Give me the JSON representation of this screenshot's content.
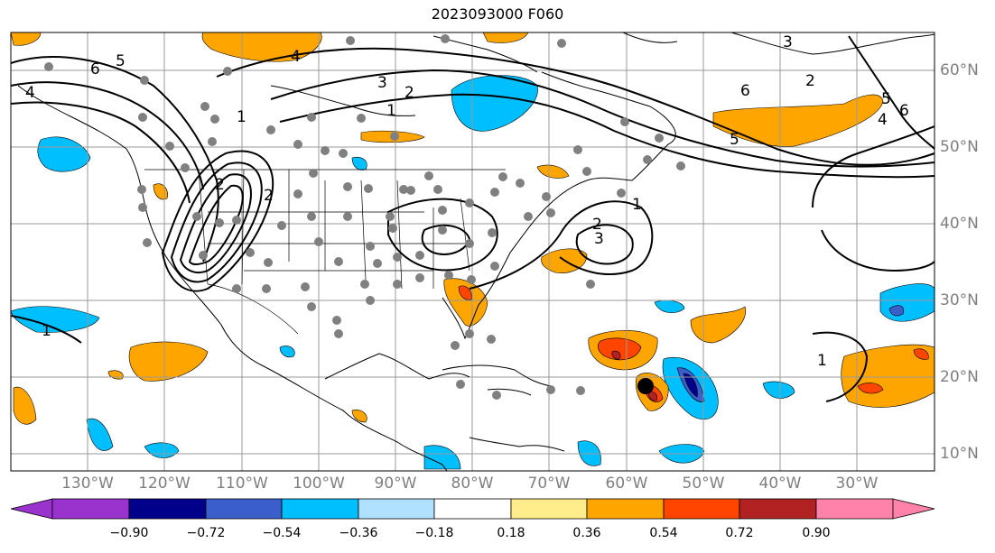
{
  "title": "2023093000 F060",
  "lat_labels": [
    "60°N",
    "50°N",
    "40°N",
    "30°N",
    "20°N",
    "10°N"
  ],
  "lon_labels": [
    "130°W",
    "120°W",
    "110°W",
    "100°W",
    "90°W",
    "80°W",
    "70°W",
    "60°W",
    "50°W",
    "40°W",
    "30°W"
  ],
  "contour_labels": [
    "6",
    "5",
    "4",
    "4",
    "3",
    "2",
    "1",
    "1",
    "2",
    "2",
    "1",
    "2",
    "3",
    "6",
    "5",
    "3",
    "2",
    "4",
    "5",
    "6",
    "1",
    "1",
    "1"
  ],
  "colorbar": {
    "ticks": [
      "−0.90",
      "−0.72",
      "−0.54",
      "−0.36",
      "−0.18",
      "0.18",
      "0.36",
      "0.54",
      "0.72",
      "0.90"
    ],
    "colors": [
      "#9a32cd",
      "#00008b",
      "#3a5fcd",
      "#00bfff",
      "#b0e2ff",
      "#ffffff",
      "#ffec8b",
      "#ffa500",
      "#ff4500",
      "#b22222",
      "#ff82ab"
    ]
  }
}
